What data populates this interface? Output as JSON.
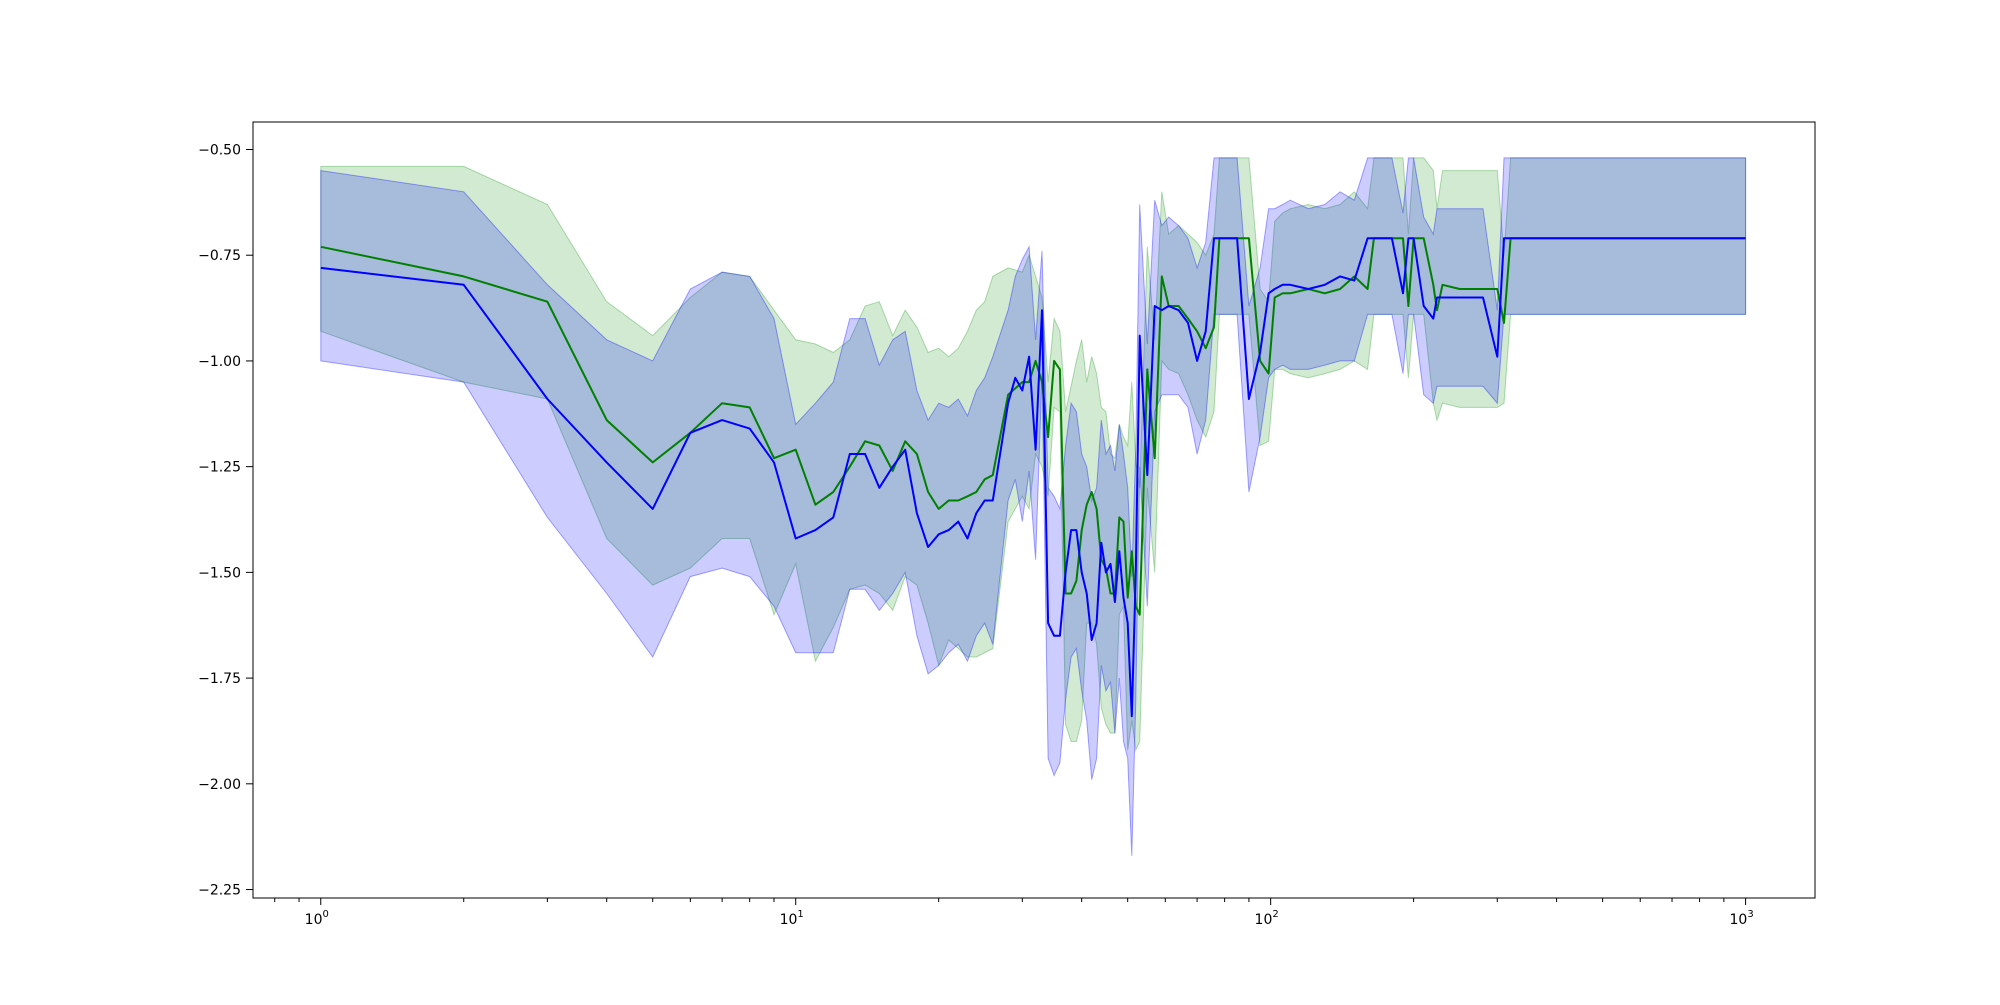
{
  "chart_data": {
    "type": "line",
    "title": "",
    "xlabel": "",
    "ylabel": "",
    "xscale": "log",
    "xlim": [
      0.72,
      1400
    ],
    "ylim": [
      -2.27,
      -0.435
    ],
    "grid": false,
    "legend": "none",
    "x_ticks": [
      {
        "value": 1,
        "base": "10",
        "exp": "0"
      },
      {
        "value": 10,
        "base": "10",
        "exp": "1"
      },
      {
        "value": 100,
        "base": "10",
        "exp": "2"
      },
      {
        "value": 1000,
        "base": "10",
        "exp": "3"
      }
    ],
    "y_ticks": [
      {
        "value": -0.5,
        "label": "−0.50"
      },
      {
        "value": -0.75,
        "label": "−0.75"
      },
      {
        "value": -1.0,
        "label": "−1.00"
      },
      {
        "value": -1.25,
        "label": "−1.25"
      },
      {
        "value": -1.5,
        "label": "−1.50"
      },
      {
        "value": -1.75,
        "label": "−1.75"
      },
      {
        "value": -2.0,
        "label": "−2.00"
      },
      {
        "value": -2.25,
        "label": "−2.25"
      }
    ],
    "series": [
      {
        "color": "#008000",
        "band_color": "#2ca02c",
        "band_opacity": 0.22,
        "x": [
          1,
          2,
          3,
          4,
          5,
          6,
          7,
          8,
          9,
          10,
          11,
          12,
          13,
          14,
          15,
          16,
          17,
          18,
          19,
          20,
          21,
          22,
          23,
          24,
          25,
          26,
          28,
          30,
          31,
          32,
          33,
          34,
          35,
          36,
          37,
          38,
          39,
          40,
          41,
          42,
          43,
          44,
          45,
          46,
          47,
          48,
          49,
          50,
          51,
          52,
          53,
          55,
          57,
          59,
          61,
          64,
          67,
          70,
          73,
          76,
          78,
          80,
          85,
          90,
          95,
          99,
          102,
          106,
          110,
          120,
          130,
          140,
          150,
          160,
          165,
          170,
          180,
          190,
          195,
          200,
          210,
          220,
          224,
          230,
          250,
          280,
          300,
          310,
          320,
          400,
          600,
          1000
        ],
        "y": [
          -0.73,
          -0.8,
          -0.86,
          -1.14,
          -1.24,
          -1.17,
          -1.1,
          -1.11,
          -1.23,
          -1.21,
          -1.34,
          -1.31,
          -1.25,
          -1.19,
          -1.2,
          -1.26,
          -1.19,
          -1.22,
          -1.31,
          -1.35,
          -1.33,
          -1.33,
          -1.32,
          -1.31,
          -1.28,
          -1.27,
          -1.08,
          -1.05,
          -1.05,
          -1.0,
          -1.05,
          -1.18,
          -1.0,
          -1.02,
          -1.55,
          -1.55,
          -1.52,
          -1.4,
          -1.34,
          -1.31,
          -1.35,
          -1.47,
          -1.49,
          -1.55,
          -1.55,
          -1.37,
          -1.38,
          -1.56,
          -1.45,
          -1.58,
          -1.6,
          -1.02,
          -1.23,
          -0.8,
          -0.87,
          -0.87,
          -0.9,
          -0.93,
          -0.97,
          -0.92,
          -0.71,
          -0.71,
          -0.71,
          -0.71,
          -1.0,
          -1.03,
          -0.85,
          -0.84,
          -0.84,
          -0.83,
          -0.84,
          -0.83,
          -0.8,
          -0.83,
          -0.71,
          -0.71,
          -0.71,
          -0.71,
          -0.87,
          -0.71,
          -0.71,
          -0.82,
          -0.88,
          -0.82,
          -0.83,
          -0.83,
          -0.83,
          -0.91,
          -0.71,
          -0.71,
          -0.71,
          -0.71
        ],
        "upper": [
          -0.54,
          -0.54,
          -0.63,
          -0.86,
          -0.94,
          -0.85,
          -0.79,
          -0.8,
          -0.88,
          -0.95,
          -0.96,
          -0.98,
          -0.95,
          -0.87,
          -0.86,
          -0.94,
          -0.88,
          -0.92,
          -0.98,
          -0.97,
          -0.99,
          -0.97,
          -0.93,
          -0.88,
          -0.86,
          -0.8,
          -0.78,
          -0.79,
          -0.75,
          -0.8,
          -0.85,
          -1.05,
          -0.9,
          -0.93,
          -1.12,
          -1.06,
          -1.0,
          -0.95,
          -1.05,
          -0.99,
          -1.03,
          -1.11,
          -1.12,
          -1.22,
          -1.23,
          -1.15,
          -1.18,
          -1.2,
          -1.05,
          -1.24,
          -1.3,
          -0.73,
          -0.95,
          -0.6,
          -0.7,
          -0.68,
          -0.7,
          -0.72,
          -0.75,
          -0.7,
          -0.52,
          -0.52,
          -0.52,
          -0.52,
          -0.83,
          -0.86,
          -0.67,
          -0.65,
          -0.64,
          -0.63,
          -0.64,
          -0.63,
          -0.6,
          -0.64,
          -0.52,
          -0.52,
          -0.52,
          -0.52,
          -0.7,
          -0.52,
          -0.52,
          -0.55,
          -0.64,
          -0.55,
          -0.55,
          -0.55,
          -0.55,
          -0.75,
          -0.52,
          -0.52,
          -0.52,
          -0.52
        ],
        "lower": [
          -0.93,
          -1.05,
          -1.09,
          -1.42,
          -1.53,
          -1.49,
          -1.42,
          -1.42,
          -1.6,
          -1.48,
          -1.71,
          -1.63,
          -1.54,
          -1.53,
          -1.55,
          -1.59,
          -1.51,
          -1.53,
          -1.62,
          -1.72,
          -1.66,
          -1.68,
          -1.7,
          -1.7,
          -1.69,
          -1.68,
          -1.38,
          -1.32,
          -1.35,
          -1.22,
          -1.25,
          -1.32,
          -1.11,
          -1.12,
          -1.86,
          -1.9,
          -1.9,
          -1.85,
          -1.62,
          -1.62,
          -1.67,
          -1.82,
          -1.86,
          -1.88,
          -1.88,
          -1.6,
          -1.58,
          -1.92,
          -1.85,
          -1.92,
          -1.9,
          -1.3,
          -1.5,
          -1.0,
          -1.02,
          -1.03,
          -1.08,
          -1.14,
          -1.18,
          -1.12,
          -0.89,
          -0.89,
          -0.89,
          -0.89,
          -1.2,
          -1.19,
          -1.02,
          -1.02,
          -1.03,
          -1.04,
          -1.03,
          -1.02,
          -1.0,
          -1.02,
          -0.89,
          -0.89,
          -0.89,
          -0.89,
          -1.04,
          -0.89,
          -0.89,
          -1.1,
          -1.14,
          -1.1,
          -1.11,
          -1.11,
          -1.11,
          -1.1,
          -0.89,
          -0.89,
          -0.89,
          -0.89
        ]
      },
      {
        "color": "#0000ff",
        "band_color": "#0000ff",
        "band_opacity": 0.2,
        "x": [
          1,
          2,
          3,
          4,
          5,
          6,
          7,
          8,
          9,
          10,
          11,
          12,
          13,
          14,
          15,
          16,
          17,
          18,
          19,
          20,
          21,
          22,
          23,
          24,
          25,
          26,
          28,
          29,
          30,
          31,
          32,
          33,
          34,
          35,
          36,
          37,
          38,
          39,
          40,
          41,
          42,
          43,
          44,
          45,
          46,
          47,
          48,
          49,
          50,
          51,
          52,
          53,
          55,
          57,
          59,
          61,
          64,
          67,
          70,
          73,
          76,
          78,
          80,
          85,
          90,
          95,
          99,
          102,
          106,
          110,
          120,
          130,
          140,
          150,
          160,
          165,
          170,
          180,
          190,
          195,
          200,
          210,
          220,
          224,
          230,
          250,
          280,
          300,
          310,
          320,
          400,
          600,
          1000
        ],
        "y": [
          -0.78,
          -0.82,
          -1.09,
          -1.24,
          -1.35,
          -1.17,
          -1.14,
          -1.16,
          -1.24,
          -1.42,
          -1.4,
          -1.37,
          -1.22,
          -1.22,
          -1.3,
          -1.25,
          -1.21,
          -1.36,
          -1.44,
          -1.41,
          -1.4,
          -1.38,
          -1.42,
          -1.36,
          -1.33,
          -1.33,
          -1.1,
          -1.04,
          -1.07,
          -0.99,
          -1.21,
          -0.88,
          -1.62,
          -1.65,
          -1.65,
          -1.5,
          -1.4,
          -1.4,
          -1.5,
          -1.55,
          -1.66,
          -1.62,
          -1.43,
          -1.5,
          -1.48,
          -1.57,
          -1.45,
          -1.56,
          -1.62,
          -1.84,
          -1.5,
          -0.94,
          -1.27,
          -0.87,
          -0.88,
          -0.87,
          -0.88,
          -0.91,
          -1.0,
          -0.93,
          -0.71,
          -0.71,
          -0.71,
          -0.71,
          -1.09,
          -0.98,
          -0.84,
          -0.83,
          -0.82,
          -0.82,
          -0.83,
          -0.82,
          -0.8,
          -0.81,
          -0.71,
          -0.71,
          -0.71,
          -0.71,
          -0.84,
          -0.71,
          -0.71,
          -0.87,
          -0.9,
          -0.85,
          -0.85,
          -0.85,
          -0.85,
          -0.99,
          -0.71,
          -0.71,
          -0.71,
          -0.71,
          -0.71
        ],
        "upper": [
          -0.55,
          -0.6,
          -0.82,
          -0.95,
          -1.0,
          -0.83,
          -0.79,
          -0.8,
          -0.9,
          -1.15,
          -1.1,
          -1.05,
          -0.9,
          -0.9,
          -1.01,
          -0.95,
          -0.93,
          -1.07,
          -1.14,
          -1.1,
          -1.11,
          -1.09,
          -1.13,
          -1.07,
          -1.04,
          -0.99,
          -0.88,
          -0.8,
          -0.76,
          -0.73,
          -0.95,
          -0.74,
          -1.3,
          -1.32,
          -1.35,
          -1.2,
          -1.1,
          -1.12,
          -1.22,
          -1.25,
          -1.33,
          -1.3,
          -1.14,
          -1.22,
          -1.2,
          -1.26,
          -1.15,
          -1.22,
          -1.3,
          -1.51,
          -1.2,
          -0.63,
          -0.96,
          -0.62,
          -0.68,
          -0.66,
          -0.68,
          -0.71,
          -0.78,
          -0.72,
          -0.52,
          -0.52,
          -0.52,
          -0.52,
          -0.87,
          -0.78,
          -0.64,
          -0.64,
          -0.63,
          -0.62,
          -0.64,
          -0.63,
          -0.6,
          -0.62,
          -0.52,
          -0.52,
          -0.52,
          -0.52,
          -0.65,
          -0.52,
          -0.52,
          -0.66,
          -0.7,
          -0.64,
          -0.64,
          -0.64,
          -0.64,
          -0.88,
          -0.52,
          -0.52,
          -0.52,
          -0.52,
          -0.52
        ],
        "lower": [
          -1.0,
          -1.05,
          -1.37,
          -1.55,
          -1.7,
          -1.51,
          -1.49,
          -1.51,
          -1.58,
          -1.69,
          -1.69,
          -1.69,
          -1.54,
          -1.54,
          -1.59,
          -1.55,
          -1.5,
          -1.65,
          -1.74,
          -1.72,
          -1.69,
          -1.67,
          -1.71,
          -1.65,
          -1.62,
          -1.67,
          -1.33,
          -1.28,
          -1.38,
          -1.26,
          -1.47,
          -1.03,
          -1.94,
          -1.98,
          -1.95,
          -1.8,
          -1.7,
          -1.68,
          -1.78,
          -1.85,
          -1.99,
          -1.94,
          -1.72,
          -1.78,
          -1.76,
          -1.88,
          -1.75,
          -1.9,
          -1.94,
          -2.17,
          -1.8,
          -1.25,
          -1.58,
          -1.12,
          -1.08,
          -1.08,
          -1.08,
          -1.11,
          -1.22,
          -1.14,
          -0.89,
          -0.89,
          -0.89,
          -0.89,
          -1.31,
          -1.18,
          -1.04,
          -1.02,
          -1.01,
          -1.02,
          -1.02,
          -1.01,
          -1.0,
          -1.0,
          -0.89,
          -0.89,
          -0.89,
          -0.89,
          -1.03,
          -0.89,
          -0.89,
          -1.08,
          -1.1,
          -1.06,
          -1.06,
          -1.06,
          -1.06,
          -1.1,
          -0.89,
          -0.89,
          -0.89,
          -0.89,
          -0.89
        ]
      }
    ]
  }
}
